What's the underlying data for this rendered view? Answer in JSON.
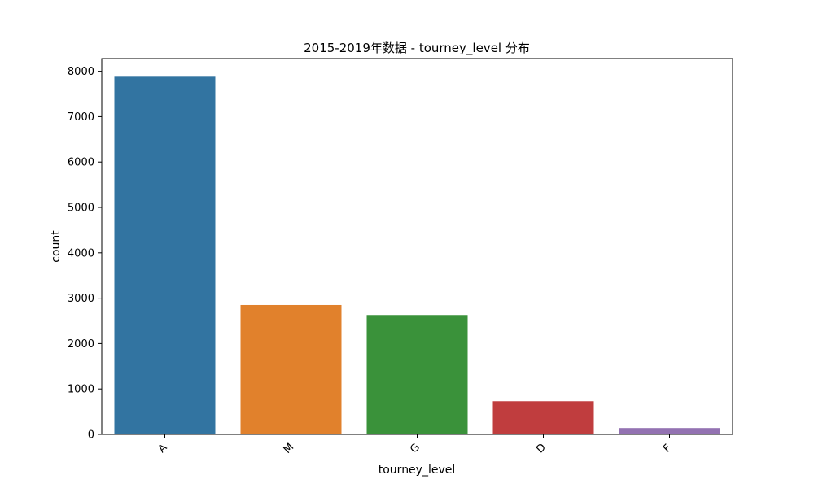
{
  "chart_data": {
    "type": "bar",
    "title": "2015-2019年数据 - tourney_level 分布",
    "xlabel": "tourney_level",
    "ylabel": "count",
    "categories": [
      "A",
      "M",
      "G",
      "D",
      "F"
    ],
    "values": [
      7880,
      2850,
      2630,
      730,
      140
    ],
    "colors": [
      "#3274a1",
      "#e1812c",
      "#3a923a",
      "#c03d3e",
      "#9372b2"
    ],
    "ylim": [
      0,
      8280
    ],
    "yticks": [
      0,
      1000,
      2000,
      3000,
      4000,
      5000,
      6000,
      7000,
      8000
    ],
    "grid": false,
    "legend": false
  }
}
